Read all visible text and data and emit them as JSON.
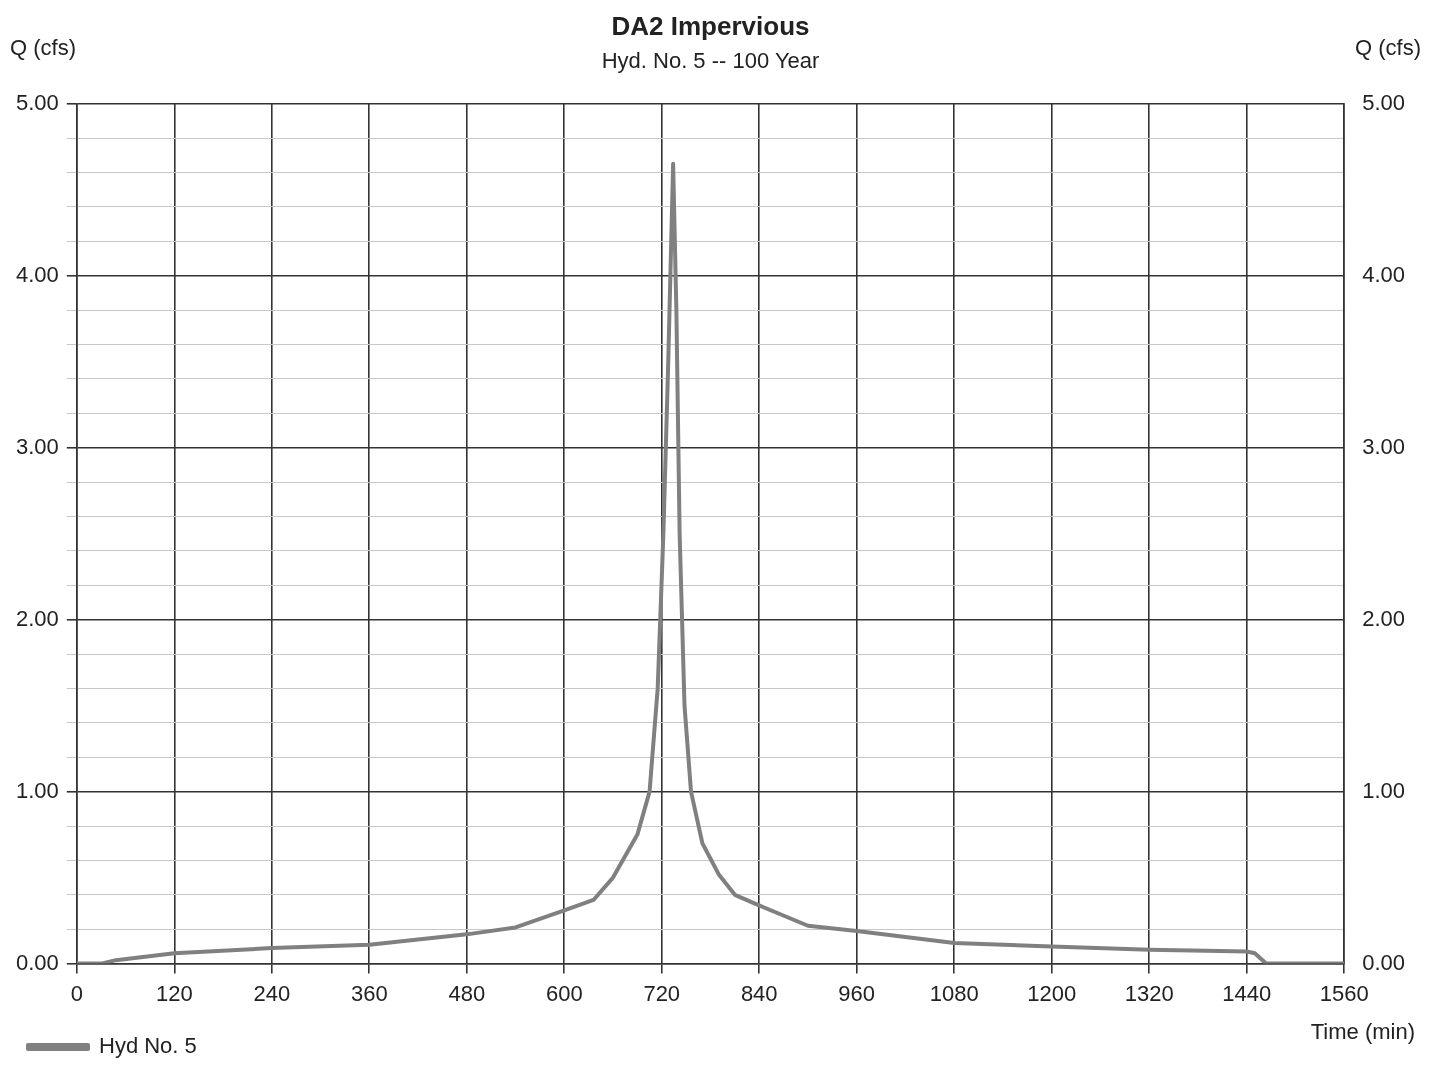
{
  "chart_data": {
    "type": "line",
    "title": "DA2 Impervious",
    "subtitle": "Hyd. No. 5 -- 100 Year",
    "xlabel": "Time (min)",
    "ylabel": "Q (cfs)",
    "y2label": "Q (cfs)",
    "xlim": [
      0,
      1560
    ],
    "xticks": [
      0,
      120,
      240,
      360,
      480,
      600,
      720,
      840,
      960,
      1080,
      1200,
      1320,
      1440,
      1560
    ],
    "ylim": [
      0,
      5
    ],
    "yticks": [
      {
        "value": 0,
        "label": "0.00"
      },
      {
        "value": 0.2,
        "label": null
      },
      {
        "value": 0.4,
        "label": null
      },
      {
        "value": 0.6,
        "label": null
      },
      {
        "value": 0.8,
        "label": null
      },
      {
        "value": 1,
        "label": "1.00"
      },
      {
        "value": 1.2,
        "label": null
      },
      {
        "value": 1.4,
        "label": null
      },
      {
        "value": 1.6,
        "label": null
      },
      {
        "value": 1.8,
        "label": null
      },
      {
        "value": 2,
        "label": "2.00"
      },
      {
        "value": 2.2,
        "label": null
      },
      {
        "value": 2.4,
        "label": null
      },
      {
        "value": 2.6,
        "label": null
      },
      {
        "value": 2.8,
        "label": null
      },
      {
        "value": 3,
        "label": "3.00"
      },
      {
        "value": 3.2,
        "label": null
      },
      {
        "value": 3.4,
        "label": null
      },
      {
        "value": 3.6,
        "label": null
      },
      {
        "value": 3.8,
        "label": null
      },
      {
        "value": 4,
        "label": "4.00"
      },
      {
        "value": 4.2,
        "label": null
      },
      {
        "value": 4.4,
        "label": null
      },
      {
        "value": 4.6,
        "label": null
      },
      {
        "value": 4.8,
        "label": null
      },
      {
        "value": 5,
        "label": "5.00"
      }
    ],
    "y2lim": [
      0,
      5
    ],
    "y2ticks": [
      {
        "value": 0,
        "label": "0.00"
      },
      {
        "value": 1,
        "label": "1.00"
      },
      {
        "value": 2,
        "label": "2.00"
      },
      {
        "value": 3,
        "label": "3.00"
      },
      {
        "value": 4,
        "label": "4.00"
      },
      {
        "value": 5,
        "label": "5.00"
      }
    ],
    "grid": true,
    "legend": "bottom left",
    "marker": "none",
    "line_style": "solid",
    "series": [
      {
        "name": "Hyd No. 5",
        "color": "#808080",
        "x": [
          0,
          30,
          48,
          120,
          240,
          360,
          480,
          540,
          600,
          636,
          660,
          690,
          705,
          715,
          722,
          728,
          734,
          738,
          742,
          748,
          756,
          770,
          790,
          810,
          834,
          900,
          960,
          1080,
          1200,
          1320,
          1440,
          1450,
          1464,
          1560
        ],
        "values": [
          0,
          0,
          0.02,
          0.06,
          0.09,
          0.11,
          0.17,
          0.21,
          0.31,
          0.37,
          0.5,
          0.75,
          1.0,
          1.6,
          2.5,
          3.5,
          4.65,
          3.8,
          2.5,
          1.5,
          1.0,
          0.7,
          0.52,
          0.4,
          0.35,
          0.22,
          0.19,
          0.12,
          0.1,
          0.08,
          0.07,
          0.06,
          0,
          0
        ]
      }
    ]
  }
}
